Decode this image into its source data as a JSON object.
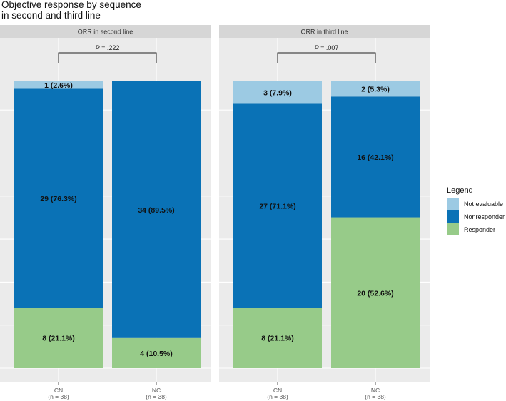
{
  "chart_data": {
    "type": "bar",
    "stacked": true,
    "title": [
      "Objective response by sequence",
      " in second and third line"
    ],
    "legend": {
      "title": "Legend",
      "position": "right",
      "items": [
        {
          "key": "not_evaluable",
          "label": "Not evaluable",
          "color": "#9ccae3"
        },
        {
          "key": "nonresponder",
          "label": "Nonresponder",
          "color": "#0a72b6"
        },
        {
          "key": "responder",
          "label": "Responder",
          "color": "#97cb89"
        }
      ]
    },
    "panels": [
      {
        "strip": "ORR in second line",
        "p_prefix": "P",
        "p_value": " = .222",
        "bars": [
          {
            "category": "CN",
            "n_label": "(n = 38)",
            "segments": [
              {
                "key": "responder",
                "value": 21.1,
                "label": "8 (21.1%)"
              },
              {
                "key": "nonresponder",
                "value": 76.3,
                "label": "29 (76.3%)"
              },
              {
                "key": "not_evaluable",
                "value": 2.6,
                "label": "1 (2.6%)"
              }
            ]
          },
          {
            "category": "NC",
            "n_label": "(n = 38)",
            "segments": [
              {
                "key": "responder",
                "value": 10.5,
                "label": "4 (10.5%)"
              },
              {
                "key": "nonresponder",
                "value": 89.5,
                "label": "34 (89.5%)"
              }
            ]
          }
        ]
      },
      {
        "strip": "ORR in third line",
        "p_prefix": "P",
        "p_value": " = .007",
        "bars": [
          {
            "category": "CN",
            "n_label": "(n = 38)",
            "segments": [
              {
                "key": "responder",
                "value": 21.1,
                "label": "8 (21.1%)"
              },
              {
                "key": "nonresponder",
                "value": 71.1,
                "label": "27 (71.1%)"
              },
              {
                "key": "not_evaluable",
                "value": 7.9,
                "label": "3 (7.9%)"
              }
            ]
          },
          {
            "category": "NC",
            "n_label": "(n = 38)",
            "segments": [
              {
                "key": "responder",
                "value": 52.6,
                "label": "20 (52.6%)"
              },
              {
                "key": "nonresponder",
                "value": 42.1,
                "label": "16 (42.1%)"
              },
              {
                "key": "not_evaluable",
                "value": 5.3,
                "label": "2 (5.3%)"
              }
            ]
          }
        ]
      }
    ],
    "ylim": [
      0,
      100
    ],
    "y_gridlines": [
      0,
      15,
      30,
      45,
      60,
      75,
      90
    ]
  }
}
